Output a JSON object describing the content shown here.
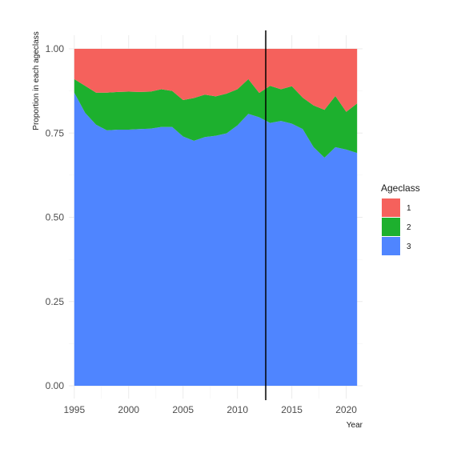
{
  "chart_data": {
    "type": "area",
    "stacked": true,
    "normalized": true,
    "xlabel": "Year",
    "ylabel": "Proportion in each ageclass",
    "xlim": [
      1994.5,
      2021.5
    ],
    "ylim": [
      0,
      1
    ],
    "x_ticks": [
      1995,
      2000,
      2005,
      2010,
      2015,
      2020
    ],
    "y_ticks": [
      0,
      0.25,
      0.5,
      0.75,
      1
    ],
    "y_tick_labels": [
      "0.00",
      "0.25",
      "0.50",
      "0.75",
      "1.00"
    ],
    "grid": true,
    "legend": {
      "title": "Ageclass",
      "position": "right"
    },
    "vline": {
      "x": 2012.6,
      "color": "#000000"
    },
    "x": [
      1995,
      1996,
      1997,
      1998,
      1999,
      2000,
      2001,
      2002,
      2003,
      2004,
      2005,
      2006,
      2007,
      2008,
      2009,
      2010,
      2011,
      2012,
      2013,
      2014,
      2015,
      2016,
      2017,
      2018,
      2019,
      2020,
      2021
    ],
    "series": [
      {
        "name": "3",
        "color": "#4F85FF",
        "values": [
          0.87,
          0.81,
          0.775,
          0.758,
          0.76,
          0.76,
          0.762,
          0.763,
          0.768,
          0.768,
          0.74,
          0.727,
          0.738,
          0.742,
          0.749,
          0.773,
          0.807,
          0.797,
          0.78,
          0.786,
          0.778,
          0.762,
          0.708,
          0.677,
          0.708,
          0.701,
          0.691
        ]
      },
      {
        "name": "2",
        "color": "#1DB02E",
        "values": [
          0.04,
          0.08,
          0.095,
          0.112,
          0.112,
          0.113,
          0.11,
          0.11,
          0.112,
          0.107,
          0.108,
          0.127,
          0.126,
          0.117,
          0.118,
          0.107,
          0.103,
          0.072,
          0.11,
          0.094,
          0.111,
          0.093,
          0.124,
          0.142,
          0.152,
          0.112,
          0.147
        ]
      },
      {
        "name": "1",
        "color": "#F5615C",
        "values": [
          0.09,
          0.11,
          0.13,
          0.13,
          0.128,
          0.127,
          0.128,
          0.127,
          0.12,
          0.125,
          0.152,
          0.146,
          0.136,
          0.141,
          0.133,
          0.12,
          0.09,
          0.131,
          0.11,
          0.12,
          0.111,
          0.145,
          0.168,
          0.181,
          0.14,
          0.187,
          0.162
        ]
      }
    ]
  }
}
